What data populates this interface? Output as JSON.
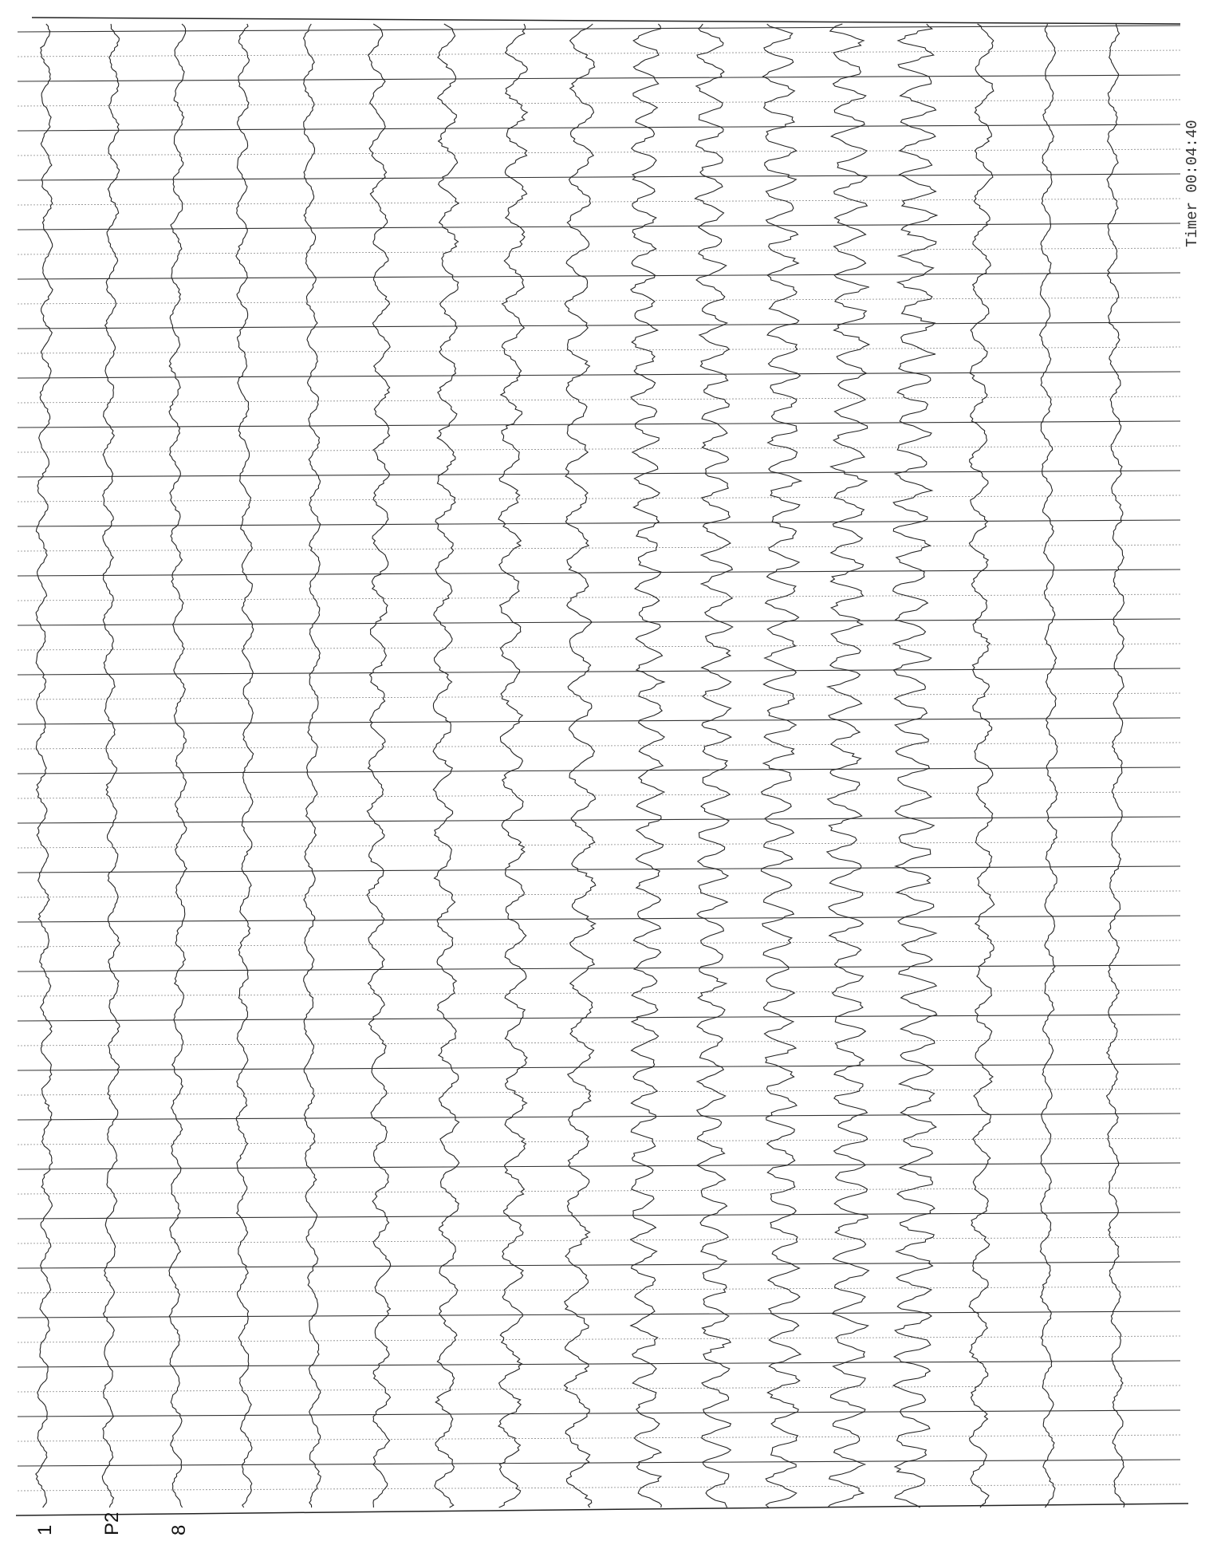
{
  "channel_labels": [
    "1",
    "P2",
    "8"
  ],
  "timer": "Timer 00:04:40"
}
